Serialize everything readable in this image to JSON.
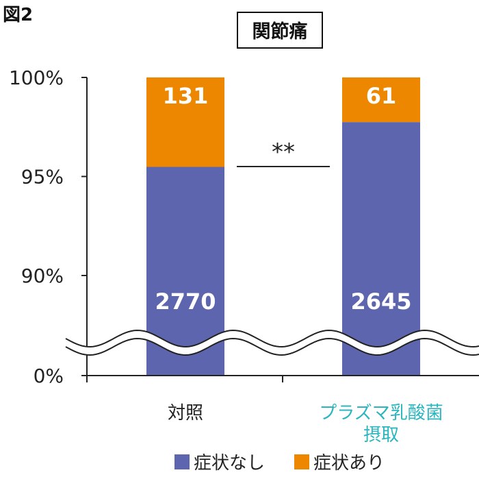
{
  "figure_label": "図2",
  "chart_data": {
    "type": "bar",
    "stacked": true,
    "title": "関節痛",
    "categories": [
      "対照",
      "プラズマ乳酸菌摂取"
    ],
    "category_lines": [
      [
        "対照"
      ],
      [
        "プラズマ乳酸菌",
        "摂取"
      ]
    ],
    "category_colors": [
      "#222222",
      "#2bb6bf"
    ],
    "series": [
      {
        "name": "症状なし",
        "values": [
          2770,
          2645
        ],
        "color": "#5c65ad"
      },
      {
        "name": "症状あり",
        "values": [
          131,
          61
        ],
        "color": "#ee8700"
      }
    ],
    "y_axis": {
      "unit": "percent",
      "ticks": [
        "100%",
        "95%",
        "90%",
        "0%"
      ],
      "tick_values": [
        100,
        95,
        90,
        0
      ],
      "axis_break": true,
      "visible_range": [
        85,
        100
      ]
    },
    "significance": "**",
    "legend_position": "bottom",
    "grid": false
  }
}
